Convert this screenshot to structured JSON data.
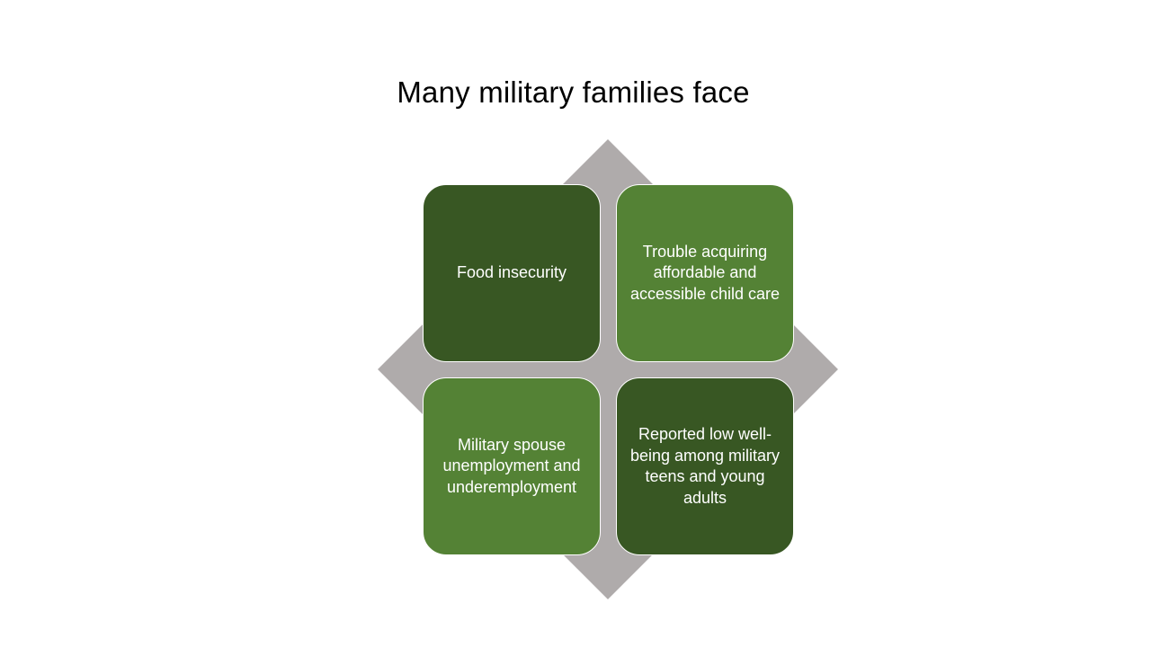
{
  "slide": {
    "title": "Many military families face"
  },
  "diagram": {
    "items": [
      {
        "label": "Food insecurity",
        "color": "#385723"
      },
      {
        "label": "Trouble acquiring affordable and accessible child care",
        "color": "#548235"
      },
      {
        "label": "Military spouse unemployment and underemployment",
        "color": "#548235"
      },
      {
        "label": "Reported low well-being among military teens and young adults",
        "color": "#385723"
      }
    ],
    "background_shape_color": "#afabab"
  }
}
